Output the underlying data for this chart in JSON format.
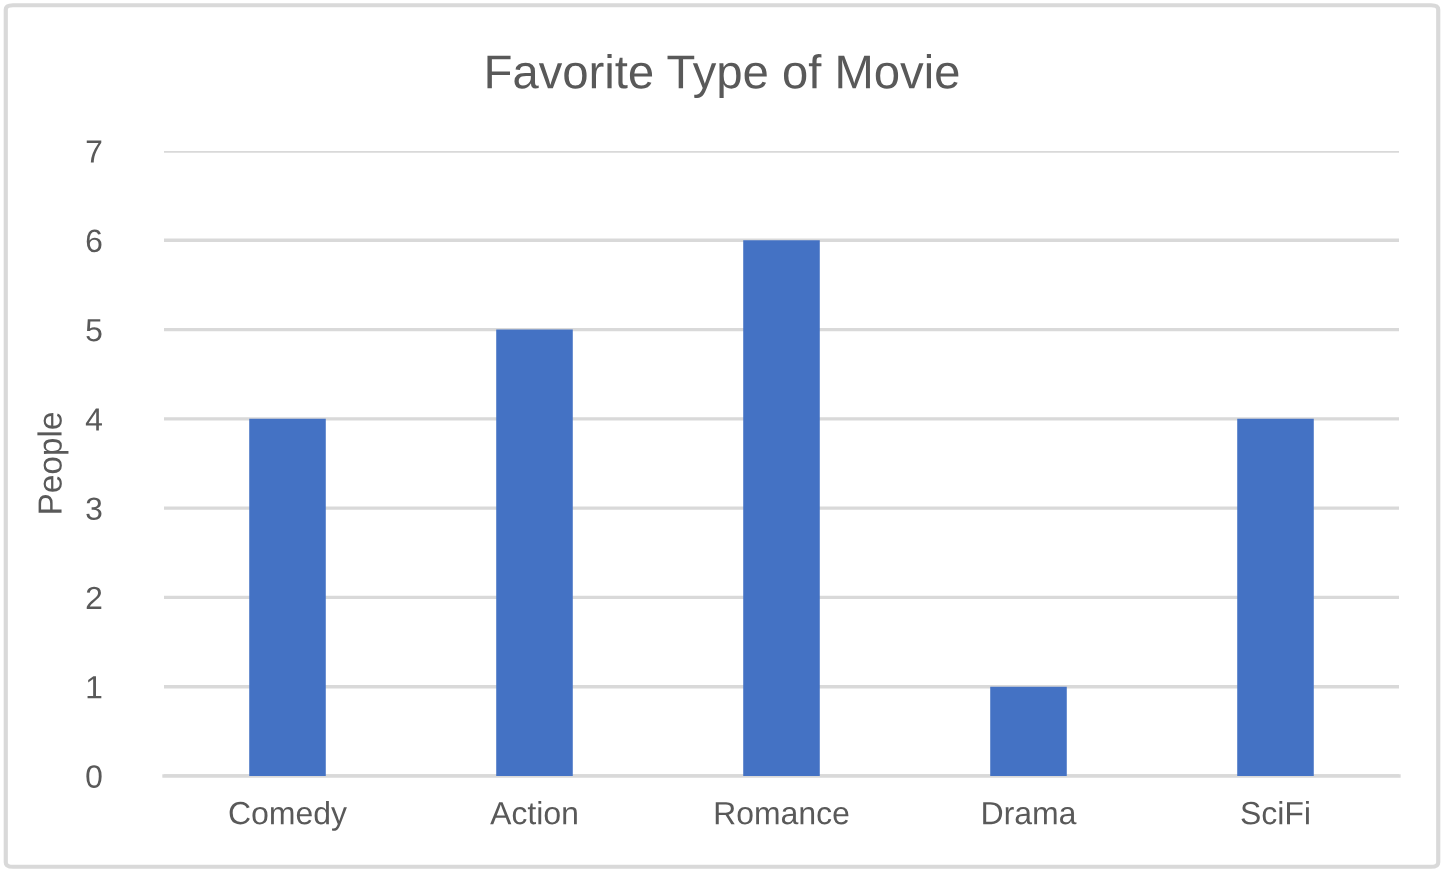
{
  "chart_data": {
    "type": "bar",
    "title": "Favorite Type of Movie",
    "ylabel": "People",
    "categories": [
      "Comedy",
      "Action",
      "Romance",
      "Drama",
      "SciFi"
    ],
    "series": [
      {
        "color": "#4472c4",
        "values": [
          4,
          5,
          6,
          1,
          4
        ]
      }
    ],
    "ylim": [
      0,
      7
    ],
    "yticks": [
      0,
      1,
      2,
      3,
      4,
      5,
      6,
      7
    ],
    "grid": "y"
  }
}
